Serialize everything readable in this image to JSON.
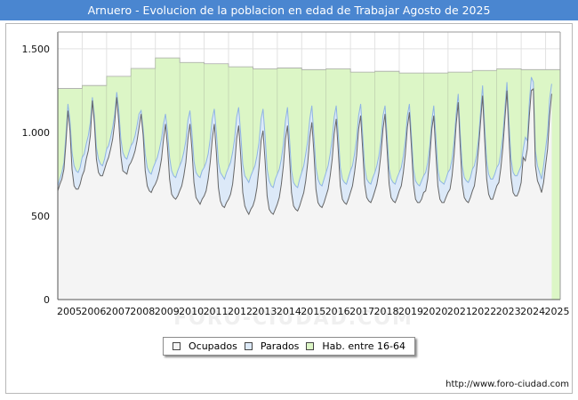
{
  "title": "Arnuero - Evolucion de la poblacion en edad de Trabajar Agosto de 2025",
  "source": "http://www.foro-ciudad.com",
  "watermark": "FORO-CIUDAD.COM",
  "colors": {
    "title_bg": "#4a86d0",
    "ocupados_fill": "#f4f4f4",
    "ocupados_line": "#666666",
    "parados_fill": "#dce9f8",
    "parados_line": "#8fb4e4",
    "hab_fill": "#dcf6c6",
    "hab_line": "#9a9a9a"
  },
  "chart_data": {
    "type": "area",
    "title": "Arnuero - Evolucion de la poblacion en edad de Trabajar Agosto de 2025",
    "xlabel": "",
    "ylabel": "",
    "xlim": [
      2005,
      2025.6
    ],
    "ylim": [
      0,
      1600
    ],
    "yticks": [
      0,
      500,
      1000,
      1500
    ],
    "ytick_labels": [
      "0",
      "500",
      "1.000",
      "1.500"
    ],
    "xtick_labels": [
      "2005",
      "2006",
      "2007",
      "2008",
      "2009",
      "2010",
      "2011",
      "2012",
      "2013",
      "2014",
      "2015",
      "2016",
      "2017",
      "2018",
      "2019",
      "2020",
      "2021",
      "2022",
      "2023",
      "2024",
      "2025"
    ],
    "grid": true,
    "legend_position": "bottom",
    "legend": [
      "Ocupados",
      "Parados",
      "Hab. entre 16-64"
    ],
    "series": [
      {
        "name": "Hab. entre 16-64",
        "type": "step",
        "x": [
          2005,
          2006,
          2007,
          2008,
          2009,
          2010,
          2011,
          2012,
          2013,
          2014,
          2015,
          2016,
          2017,
          2018,
          2019,
          2020,
          2021,
          2022,
          2023,
          2024
        ],
        "values": [
          1262,
          1280,
          1335,
          1382,
          1445,
          1418,
          1410,
          1392,
          1380,
          1385,
          1375,
          1380,
          1360,
          1365,
          1355,
          1355,
          1360,
          1370,
          1380,
          1375
        ]
      },
      {
        "name": "Parados",
        "type": "monthly",
        "start": [
          2005,
          1
        ],
        "values": [
          680,
          720,
          760,
          820,
          980,
          1170,
          1070,
          880,
          800,
          770,
          760,
          790,
          850,
          870,
          930,
          980,
          1060,
          1210,
          1100,
          910,
          840,
          810,
          800,
          840,
          900,
          920,
          970,
          1030,
          1110,
          1240,
          1130,
          960,
          880,
          850,
          840,
          880,
          920,
          940,
          980,
          1040,
          1110,
          1130,
          1020,
          870,
          790,
          760,
          750,
          790,
          820,
          850,
          900,
          960,
          1050,
          1110,
          1000,
          850,
          770,
          740,
          730,
          770,
          800,
          830,
          880,
          950,
          1070,
          1130,
          1000,
          830,
          760,
          740,
          730,
          770,
          790,
          820,
          870,
          960,
          1080,
          1140,
          1000,
          820,
          760,
          740,
          720,
          760,
          790,
          820,
          880,
          960,
          1090,
          1150,
          990,
          810,
          740,
          720,
          700,
          740,
          770,
          800,
          860,
          940,
          1080,
          1140,
          980,
          780,
          710,
          680,
          670,
          720,
          750,
          780,
          840,
          930,
          1070,
          1150,
          960,
          770,
          700,
          680,
          670,
          720,
          760,
          800,
          870,
          950,
          1080,
          1160,
          980,
          790,
          720,
          690,
          680,
          720,
          760,
          800,
          870,
          960,
          1090,
          1160,
          990,
          790,
          720,
          700,
          690,
          730,
          770,
          800,
          870,
          960,
          1100,
          1170,
          990,
          790,
          720,
          700,
          690,
          730,
          760,
          800,
          860,
          950,
          1100,
          1160,
          980,
          780,
          720,
          700,
          690,
          730,
          760,
          790,
          860,
          950,
          1100,
          1170,
          980,
          780,
          710,
          690,
          680,
          710,
          740,
          760,
          820,
          920,
          1070,
          1160,
          980,
          780,
          710,
          700,
          690,
          720,
          760,
          780,
          840,
          950,
          1110,
          1230,
          1000,
          800,
          730,
          710,
          700,
          730,
          780,
          800,
          860,
          960,
          1120,
          1280,
          1040,
          830,
          750,
          720,
          720,
          750,
          790,
          810,
          880,
          980,
          1140,
          1300,
          1060,
          840,
          760,
          740,
          740,
          770,
          800,
          900,
          970,
          950,
          1180,
          1330,
          1300,
          890,
          800,
          760,
          720,
          800,
          900,
          1000,
          1200,
          1290
        ]
      },
      {
        "name": "Ocupados",
        "type": "monthly",
        "start": [
          2005,
          1
        ],
        "values": [
          650,
          690,
          720,
          780,
          930,
          1130,
          1010,
          780,
          680,
          660,
          660,
          690,
          740,
          770,
          840,
          890,
          980,
          1190,
          1060,
          840,
          760,
          740,
          740,
          780,
          820,
          850,
          900,
          960,
          1060,
          1210,
          1060,
          860,
          770,
          760,
          750,
          800,
          820,
          850,
          890,
          950,
          1030,
          1110,
          980,
          770,
          680,
          650,
          640,
          670,
          690,
          720,
          770,
          840,
          960,
          1050,
          910,
          720,
          630,
          610,
          600,
          620,
          650,
          680,
          740,
          820,
          960,
          1050,
          900,
          700,
          610,
          590,
          570,
          600,
          620,
          650,
          720,
          820,
          960,
          1050,
          880,
          670,
          590,
          560,
          550,
          580,
          600,
          630,
          690,
          800,
          960,
          1040,
          860,
          640,
          560,
          530,
          510,
          540,
          560,
          600,
          670,
          790,
          950,
          1010,
          830,
          620,
          540,
          520,
          510,
          540,
          570,
          610,
          690,
          800,
          960,
          1040,
          850,
          640,
          560,
          540,
          530,
          560,
          600,
          640,
          710,
          820,
          970,
          1060,
          880,
          660,
          580,
          560,
          550,
          580,
          620,
          660,
          740,
          840,
          990,
          1080,
          890,
          680,
          600,
          580,
          570,
          600,
          640,
          680,
          760,
          860,
          1020,
          1100,
          900,
          690,
          610,
          590,
          580,
          610,
          650,
          690,
          760,
          870,
          1020,
          1110,
          900,
          690,
          610,
          590,
          580,
          610,
          650,
          680,
          760,
          870,
          1030,
          1120,
          910,
          690,
          600,
          580,
          580,
          600,
          640,
          650,
          720,
          850,
          1020,
          1100,
          880,
          680,
          600,
          580,
          580,
          610,
          640,
          660,
          740,
          870,
          1050,
          1180,
          920,
          690,
          610,
          590,
          580,
          610,
          650,
          680,
          770,
          900,
          1060,
          1220,
          960,
          720,
          630,
          600,
          600,
          640,
          680,
          700,
          790,
          910,
          1080,
          1250,
          970,
          730,
          640,
          620,
          620,
          650,
          700,
          850,
          830,
          900,
          1100,
          1250,
          1260,
          800,
          710,
          680,
          640,
          700,
          800,
          900,
          1100,
          1230
        ]
      }
    ]
  }
}
